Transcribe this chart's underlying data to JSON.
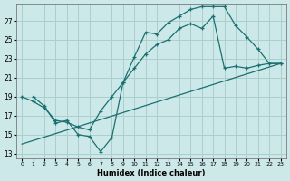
{
  "bg_color": "#cce8e8",
  "grid_color": "#aacfcf",
  "line_color": "#1a7070",
  "xlabel": "Humidex (Indice chaleur)",
  "line1_x": [
    1,
    2,
    3,
    4,
    5,
    6,
    7,
    8,
    9,
    10,
    11,
    12,
    13,
    14,
    15,
    16,
    17,
    18,
    19,
    20,
    21,
    22,
    23
  ],
  "line1_y": [
    19.0,
    18.0,
    16.2,
    16.5,
    15.0,
    14.8,
    13.2,
    14.7,
    20.5,
    23.2,
    25.8,
    25.6,
    26.8,
    27.5,
    28.2,
    28.5,
    28.5,
    28.5,
    26.5,
    25.3,
    24.0,
    22.5,
    22.5
  ],
  "line2_x": [
    0,
    1,
    2,
    3,
    4,
    5,
    6,
    7,
    8,
    9,
    10,
    11,
    12,
    13,
    14,
    15,
    16,
    17,
    18,
    19,
    20,
    21,
    22,
    23
  ],
  "line2_y": [
    19.0,
    18.5,
    17.8,
    16.5,
    16.3,
    15.8,
    15.5,
    17.5,
    19.0,
    20.5,
    22.0,
    23.5,
    24.5,
    25.0,
    26.2,
    26.7,
    26.2,
    27.5,
    22.0,
    22.2,
    22.0,
    22.3,
    22.5,
    22.5
  ],
  "line3_x": [
    0,
    23
  ],
  "line3_y": [
    14.0,
    22.5
  ],
  "xlim": [
    -0.5,
    23.5
  ],
  "ylim": [
    12.5,
    28.8
  ],
  "yticks": [
    13,
    15,
    17,
    19,
    21,
    23,
    25,
    27
  ],
  "xticks": [
    0,
    1,
    2,
    3,
    4,
    5,
    6,
    7,
    8,
    9,
    10,
    11,
    12,
    13,
    14,
    15,
    16,
    17,
    18,
    19,
    20,
    21,
    22,
    23
  ],
  "xticklabels": [
    "0",
    "1",
    "2",
    "3",
    "4",
    "5",
    "6",
    "7",
    "8",
    "9",
    "10",
    "11",
    "12",
    "13",
    "14",
    "15",
    "16",
    "17",
    "18",
    "19",
    "20",
    "21",
    "22",
    "23"
  ]
}
